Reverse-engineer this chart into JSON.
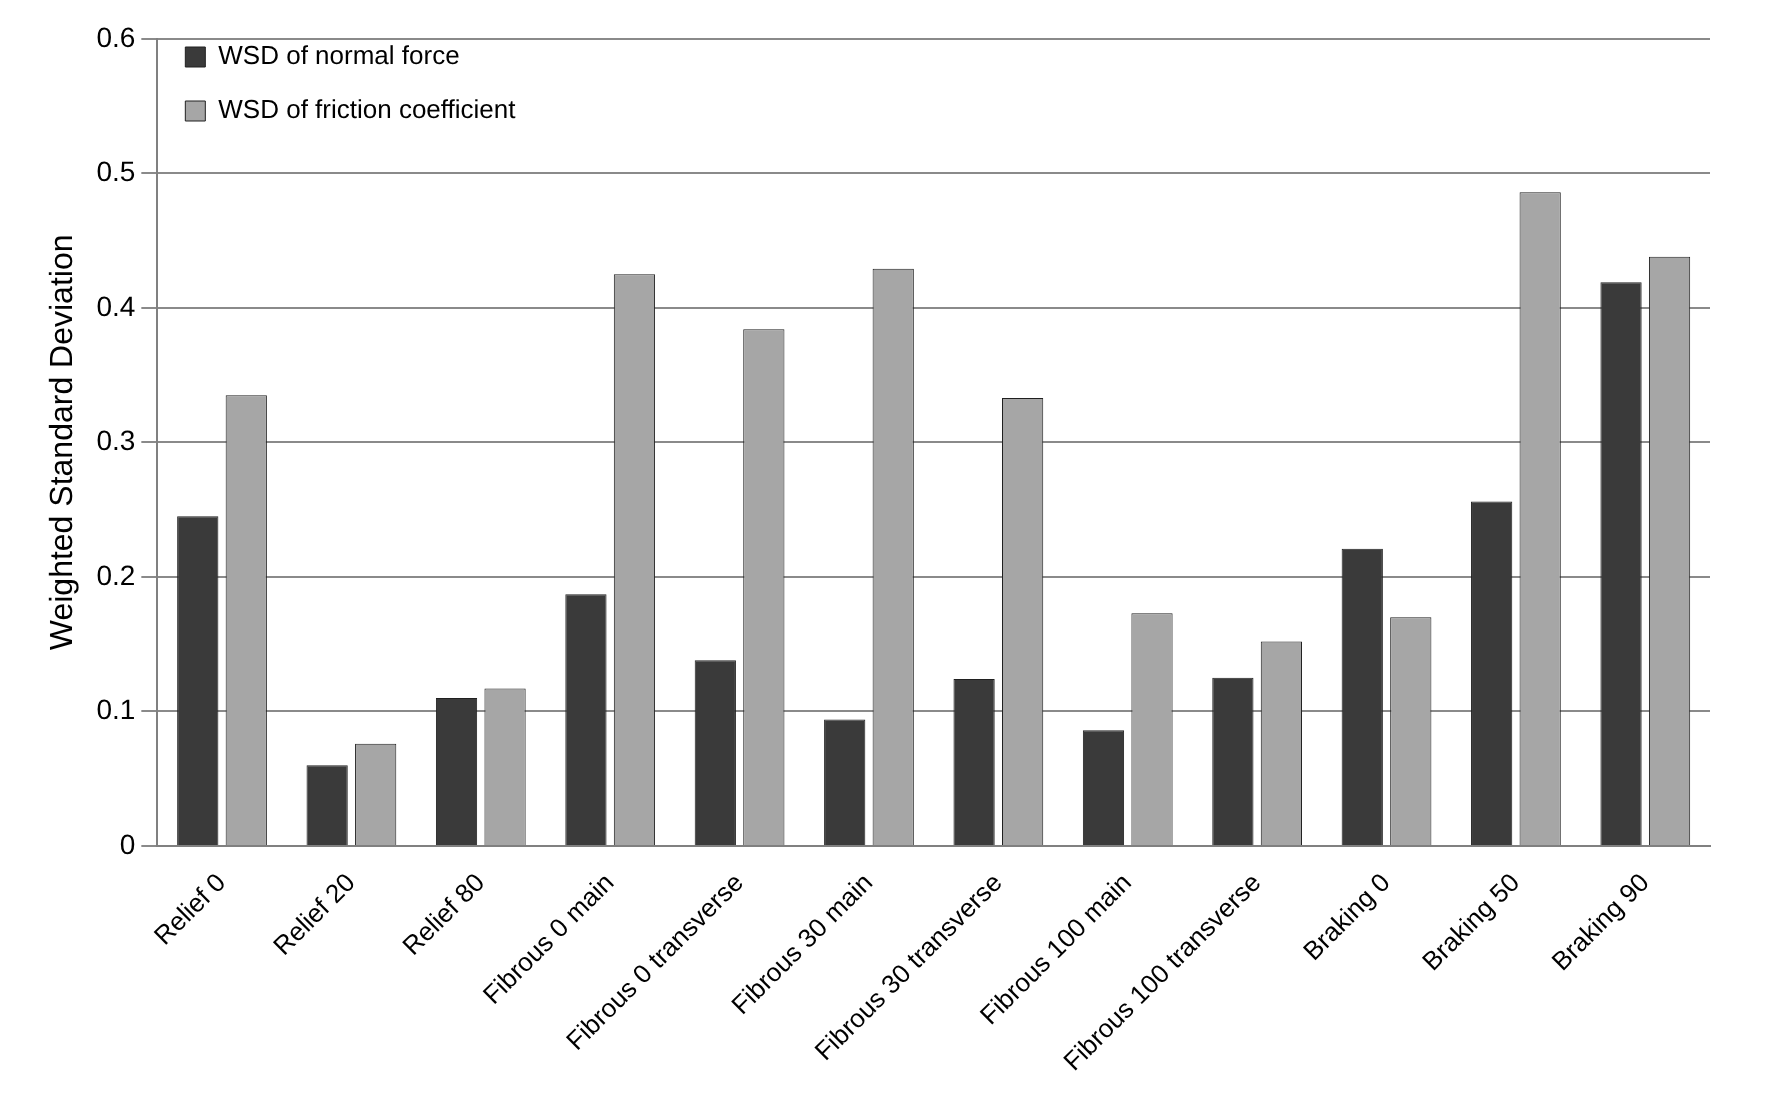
{
  "chart_data": {
    "type": "bar",
    "ylabel": "Weighted Standard Deviation",
    "categories": [
      "Relief 0",
      "Relief 20",
      "Relief 80",
      "Fibrous 0 main",
      "Fibrous 0 transverse",
      "Fibrous 30 main",
      "Fibrous 30 transverse",
      "Fibrous 100 main",
      "Fibrous 100 transverse",
      "Braking 0",
      "Braking 50",
      "Braking 90"
    ],
    "series": [
      {
        "name": "WSD of normal force",
        "color": "#3a3a3a",
        "values": [
          0.245,
          0.06,
          0.11,
          0.187,
          0.138,
          0.094,
          0.124,
          0.086,
          0.125,
          0.221,
          0.256,
          0.419
        ]
      },
      {
        "name": "WSD of friction coefficient",
        "color": "#a6a6a6",
        "values": [
          0.335,
          0.076,
          0.117,
          0.425,
          0.384,
          0.429,
          0.333,
          0.173,
          0.152,
          0.17,
          0.486,
          0.438
        ]
      }
    ],
    "ylim": [
      0,
      0.6
    ],
    "yticks": [
      0,
      0.1,
      0.2,
      0.3,
      0.4,
      0.5,
      0.6
    ],
    "grid": "y",
    "legend": "top left"
  }
}
